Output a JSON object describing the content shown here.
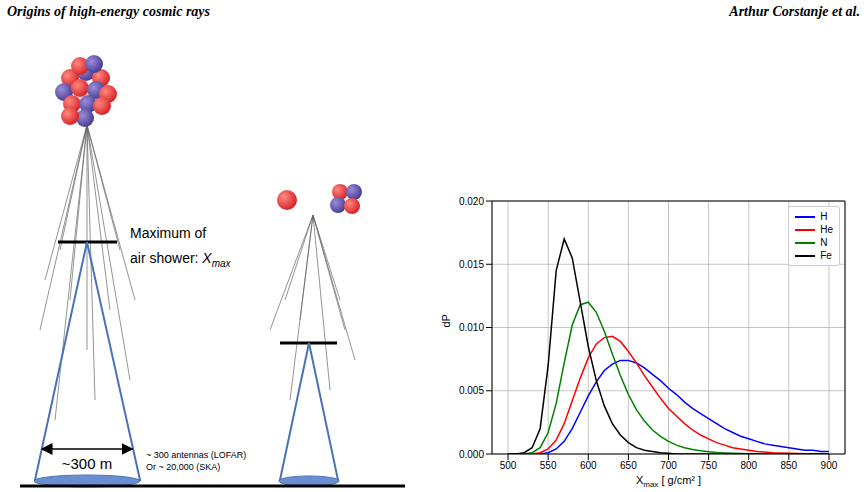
{
  "header": {
    "left": "Origins of high-energy cosmic rays",
    "right": "Arthur Corstanje et al."
  },
  "diagram": {
    "max_label_line1": "Maximum of",
    "max_label_line2": "air shower: ",
    "max_symbol": {
      "base": "X",
      "subscript": "max"
    },
    "width_label": "~300 m",
    "antenna_labels": [
      "~ 300 antennas (LOFAR)",
      "Or ~ 20,000 (SKA)"
    ]
  },
  "chart_data": {
    "type": "line",
    "xlabel": {
      "base": "X",
      "subscript": "max",
      "after": " [ g/cm² ]"
    },
    "ylabel": "dP",
    "xlim": [
      480,
      920
    ],
    "xticks": [
      500,
      550,
      600,
      650,
      700,
      750,
      800,
      850,
      900
    ],
    "ylim": [
      0,
      0.02
    ],
    "yticks": [
      {
        "value": 0,
        "label": "0.000"
      },
      {
        "value": 0.005,
        "label": "0.005"
      },
      {
        "value": 0.01,
        "label": "0.010"
      },
      {
        "value": 0.015,
        "label": "0.015"
      },
      {
        "value": 0.02,
        "label": "0.020"
      }
    ],
    "grid": true,
    "legend": "upper right",
    "x": [
      500,
      510,
      520,
      530,
      540,
      550,
      560,
      570,
      580,
      590,
      600,
      610,
      620,
      630,
      640,
      650,
      660,
      670,
      680,
      690,
      700,
      710,
      720,
      730,
      740,
      750,
      760,
      770,
      780,
      790,
      800,
      810,
      820,
      830,
      840,
      850,
      860,
      870,
      880,
      890,
      900
    ],
    "series": [
      {
        "name": "H",
        "color": "#0000ff",
        "values": [
          0,
          0,
          0,
          0,
          0,
          0.0001,
          0.0004,
          0.001,
          0.002,
          0.0033,
          0.0046,
          0.0057,
          0.0066,
          0.0071,
          0.0074,
          0.0074,
          0.0072,
          0.0068,
          0.0063,
          0.0058,
          0.0052,
          0.0047,
          0.0041,
          0.0036,
          0.0032,
          0.0028,
          0.0024,
          0.002,
          0.0017,
          0.0014,
          0.0012,
          0.001,
          0.0008,
          0.0007,
          0.0006,
          0.0005,
          0.0004,
          0.0003,
          0.0003,
          0.0002,
          0.0002
        ]
      },
      {
        "name": "He",
        "color": "#ff0000",
        "values": [
          0,
          0,
          0,
          0,
          0.0001,
          0.0004,
          0.0011,
          0.0024,
          0.0042,
          0.006,
          0.0076,
          0.0087,
          0.0092,
          0.0093,
          0.0089,
          0.0081,
          0.0072,
          0.0062,
          0.0053,
          0.0044,
          0.0036,
          0.003,
          0.0024,
          0.0019,
          0.0015,
          0.0012,
          0.0009,
          0.0007,
          0.0005,
          0.0004,
          0.0003,
          0.0002,
          0.00015,
          0.0001,
          7e-05,
          5e-05,
          3e-05,
          2e-05,
          1e-05,
          0,
          0
        ]
      },
      {
        "name": "N",
        "color": "#008000",
        "values": [
          0,
          0,
          0,
          0.0001,
          0.0005,
          0.0017,
          0.004,
          0.0072,
          0.0102,
          0.0118,
          0.012,
          0.0112,
          0.0097,
          0.0079,
          0.0062,
          0.0047,
          0.0035,
          0.0026,
          0.0019,
          0.0014,
          0.001,
          0.0007,
          0.0005,
          0.00035,
          0.00025,
          0.00018,
          0.00012,
          8e-05,
          5e-05,
          3e-05,
          2e-05,
          0,
          0,
          0,
          0,
          0,
          0,
          0,
          0,
          0,
          0
        ]
      },
      {
        "name": "Fe",
        "color": "#000000",
        "values": [
          0,
          0,
          0.0001,
          0.0005,
          0.002,
          0.007,
          0.0145,
          0.017,
          0.0155,
          0.012,
          0.0085,
          0.0058,
          0.0038,
          0.0024,
          0.0015,
          0.0009,
          0.0005,
          0.0003,
          0.0002,
          0.0001,
          5e-05,
          0,
          0,
          0,
          0,
          0,
          0,
          0,
          0,
          0,
          0,
          0,
          0,
          0,
          0,
          0,
          0,
          0,
          0,
          0,
          0
        ]
      }
    ]
  }
}
